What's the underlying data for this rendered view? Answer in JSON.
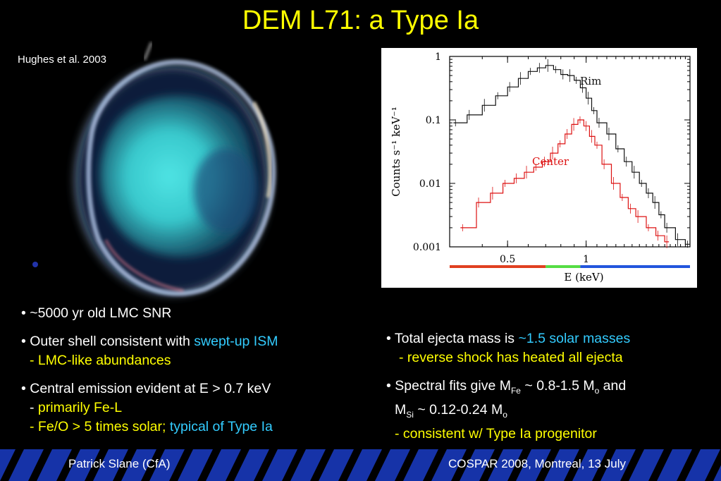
{
  "slide": {
    "title": "DEM L71: a Type Ia",
    "credit": "Hughes et al. 2003",
    "footer_left": "Patrick Slane (CfA)",
    "footer_right": "COSPAR 2008, Montreal, 13 July"
  },
  "bullets_left": {
    "b1": "• ~5000 yr old LMC SNR",
    "b2_prefix": "• Outer shell consistent with ",
    "b2_highlight": "swept-up ISM",
    "b2_sub": "- LMC-like abundances",
    "b3": "• Central emission evident at E > 0.7 keV",
    "b3_sub1_dash": "- ",
    "b3_sub1": "primarily Fe-L",
    "b3_sub2": "- Fe/O > 5 times solar; ",
    "b3_sub2_highlight": "typical of Type Ia"
  },
  "bullets_right": {
    "r1_prefix": "• Total ejecta mass is ",
    "r1_highlight": "~1.5 solar masses",
    "r1_sub": "- reverse shock has heated all ejecta",
    "r2_a": "• Spectral fits give M",
    "r2_sub_fe": "Fe",
    "r2_b": " ~ 0.8-1.5 M",
    "r2_sub_o1": "o",
    "r2_c": "  and",
    "r2_d": "M",
    "r2_sub_si": "Si",
    "r2_e": " ~ 0.12-0.24 M",
    "r2_sub_o2": "o",
    "r2_sub": "- consistent w/ Type Ia progenitor"
  },
  "chart_data": {
    "type": "line",
    "xlabel": "E (keV)",
    "ylabel": "Counts s⁻¹ keV⁻¹",
    "x_scale": "log",
    "y_scale": "log",
    "xlim": [
      0.3,
      2.5
    ],
    "ylim": [
      0.001,
      1
    ],
    "x_ticks": [
      {
        "value": 0.5,
        "label": "0.5"
      },
      {
        "value": 1,
        "label": "1"
      }
    ],
    "y_ticks": [
      {
        "value": 1,
        "label": "1"
      },
      {
        "value": 0.1,
        "label": "0.1"
      },
      {
        "value": 0.01,
        "label": "0.01"
      },
      {
        "value": 0.001,
        "label": "0.001"
      }
    ],
    "series": [
      {
        "name": "Rim",
        "color": "#111111",
        "x": [
          0.31,
          0.35,
          0.4,
          0.45,
          0.5,
          0.55,
          0.6,
          0.65,
          0.7,
          0.75,
          0.8,
          0.85,
          0.9,
          0.95,
          1.0,
          1.05,
          1.1,
          1.2,
          1.3,
          1.4,
          1.5,
          1.6,
          1.7,
          1.8,
          1.9,
          2.0,
          2.2,
          2.4
        ],
        "y": [
          0.09,
          0.12,
          0.17,
          0.24,
          0.33,
          0.45,
          0.58,
          0.66,
          0.72,
          0.62,
          0.52,
          0.5,
          0.42,
          0.32,
          0.22,
          0.14,
          0.09,
          0.06,
          0.035,
          0.022,
          0.015,
          0.01,
          0.007,
          0.005,
          0.0032,
          0.002,
          0.0013,
          0.0011
        ]
      },
      {
        "name": "Center",
        "color": "#dd1111",
        "x": [
          0.33,
          0.38,
          0.43,
          0.48,
          0.53,
          0.58,
          0.63,
          0.68,
          0.73,
          0.78,
          0.83,
          0.88,
          0.93,
          0.98,
          1.03,
          1.08,
          1.15,
          1.25,
          1.35,
          1.45,
          1.55,
          1.7,
          1.85,
          2.0
        ],
        "y": [
          0.002,
          0.005,
          0.007,
          0.01,
          0.012,
          0.015,
          0.018,
          0.022,
          0.03,
          0.042,
          0.06,
          0.085,
          0.1,
          0.08,
          0.055,
          0.04,
          0.02,
          0.01,
          0.006,
          0.004,
          0.003,
          0.002,
          0.0015,
          0.0012
        ]
      }
    ],
    "band_colors": [
      "#e04020",
      "#55dd44",
      "#2255dd"
    ],
    "bands_kev": [
      [
        0.3,
        0.7
      ],
      [
        0.7,
        0.95
      ],
      [
        0.95,
        2.5
      ]
    ]
  }
}
